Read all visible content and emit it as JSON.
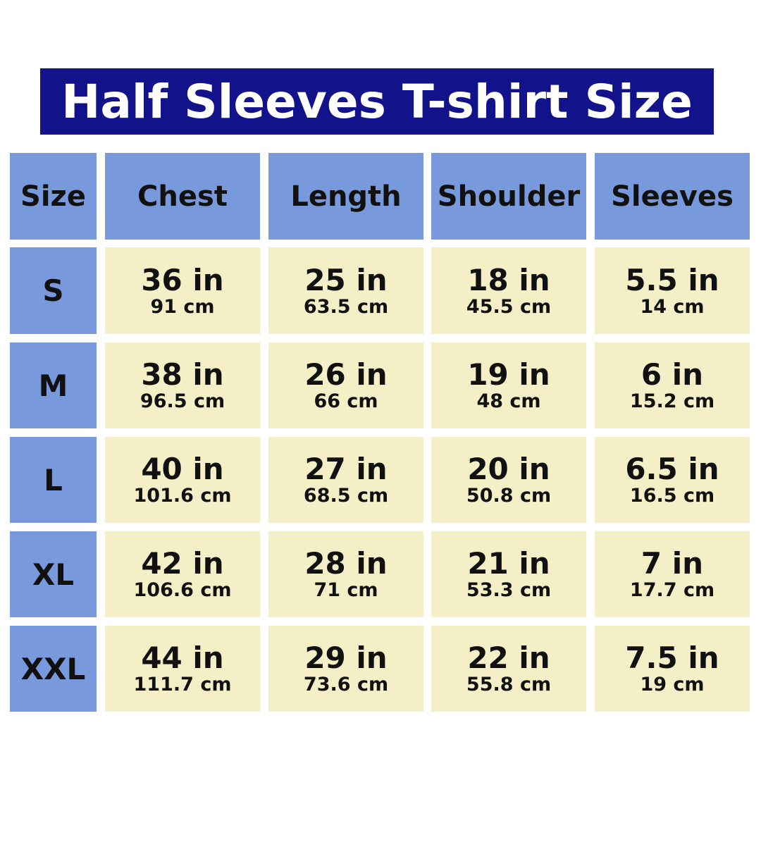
{
  "title": "Half Sleeves T-shirt Size",
  "colors": {
    "title_bg": "#12128a",
    "header_bg": "#7899dc",
    "cell_bg": "#f5efc8"
  },
  "headers": [
    "Size",
    "Chest",
    "Length",
    "Shoulder",
    "Sleeves"
  ],
  "rows": [
    {
      "size": "S",
      "values": [
        {
          "in": "36 in",
          "cm": "91 cm"
        },
        {
          "in": "25 in",
          "cm": "63.5 cm"
        },
        {
          "in": "18 in",
          "cm": "45.5 cm"
        },
        {
          "in": "5.5 in",
          "cm": "14 cm"
        }
      ]
    },
    {
      "size": "M",
      "values": [
        {
          "in": "38 in",
          "cm": "96.5 cm"
        },
        {
          "in": "26 in",
          "cm": "66 cm"
        },
        {
          "in": "19 in",
          "cm": "48 cm"
        },
        {
          "in": "6 in",
          "cm": "15.2 cm"
        }
      ]
    },
    {
      "size": "L",
      "values": [
        {
          "in": "40 in",
          "cm": "101.6 cm"
        },
        {
          "in": "27 in",
          "cm": "68.5 cm"
        },
        {
          "in": "20 in",
          "cm": "50.8 cm"
        },
        {
          "in": "6.5 in",
          "cm": "16.5 cm"
        }
      ]
    },
    {
      "size": "XL",
      "values": [
        {
          "in": "42 in",
          "cm": "106.6 cm"
        },
        {
          "in": "28 in",
          "cm": "71 cm"
        },
        {
          "in": "21 in",
          "cm": "53.3 cm"
        },
        {
          "in": "7 in",
          "cm": "17.7 cm"
        }
      ]
    },
    {
      "size": "XXL",
      "values": [
        {
          "in": "44 in",
          "cm": "111.7 cm"
        },
        {
          "in": "29 in",
          "cm": "73.6 cm"
        },
        {
          "in": "22 in",
          "cm": "55.8 cm"
        },
        {
          "in": "7.5 in",
          "cm": "19 cm"
        }
      ]
    }
  ]
}
